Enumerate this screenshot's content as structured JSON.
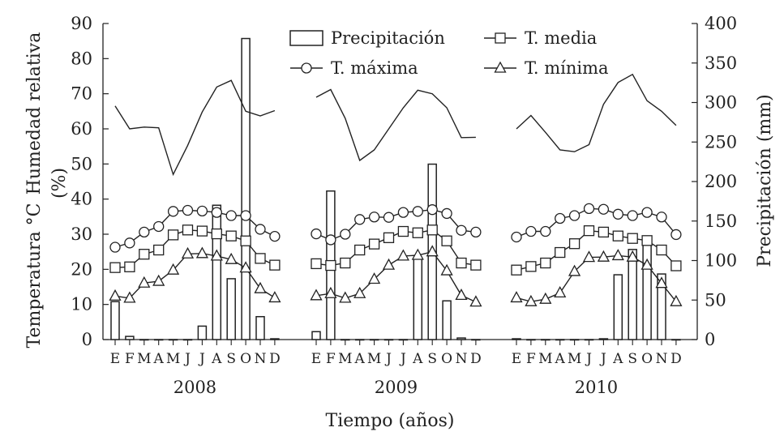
{
  "chart_data": {
    "type": "combo",
    "title": "",
    "xlabel": "Tiempo (años)",
    "ylabel_left_top": "Humedad relativa",
    "ylabel_left_top_unit": "(%)",
    "ylabel_left_bottom": "Temperatura °C",
    "ylabel_right": "Precipitación (mm)",
    "ylim_left": [
      0,
      90
    ],
    "ylim_right": [
      0,
      400
    ],
    "yticks_left": [
      0,
      10,
      20,
      30,
      40,
      50,
      60,
      70,
      80,
      90
    ],
    "yticks_right": [
      0,
      50,
      100,
      150,
      200,
      250,
      300,
      350,
      400
    ],
    "grid": false,
    "legend_position": "top",
    "years": [
      "2008",
      "2009",
      "2010"
    ],
    "months": [
      "E",
      "F",
      "M",
      "A",
      "M",
      "J",
      "J",
      "A",
      "S",
      "O",
      "N",
      "D"
    ],
    "series": [
      {
        "name": "Precipitación",
        "kind": "bar",
        "axis": "right",
        "values": [
          [
            48,
            4,
            0,
            0,
            0,
            0,
            17,
            170,
            77,
            381,
            29,
            1
          ],
          [
            10,
            188,
            0,
            0,
            0,
            0,
            0,
            104,
            222,
            49,
            2,
            0
          ],
          [
            1,
            0,
            0,
            0,
            0,
            0,
            1,
            82,
            114,
            128,
            83,
            0
          ]
        ]
      },
      {
        "name": "T. media",
        "kind": "line",
        "marker": "square",
        "axis": "left",
        "values": [
          [
            20.5,
            20.7,
            24.3,
            25.5,
            29.8,
            31.2,
            30.9,
            30.1,
            29.5,
            28.1,
            23.1,
            21.2
          ],
          [
            21.6,
            21.1,
            21.8,
            25.5,
            27.2,
            29.0,
            30.8,
            30.4,
            31.2,
            28.1,
            21.8,
            21.2
          ],
          [
            19.8,
            20.8,
            21.8,
            24.8,
            27.3,
            31.0,
            30.6,
            29.5,
            28.8,
            28.2,
            25.5,
            21.0
          ]
        ]
      },
      {
        "name": "T. máxima",
        "kind": "line",
        "marker": "circle",
        "axis": "left",
        "values": [
          [
            26.3,
            27.5,
            30.6,
            32.2,
            36.5,
            36.8,
            36.6,
            36.2,
            35.3,
            35.3,
            31.4,
            29.4
          ],
          [
            30.1,
            28.4,
            30.0,
            34.2,
            34.9,
            34.8,
            36.2,
            36.5,
            37.0,
            35.9,
            31.1,
            30.6
          ],
          [
            29.2,
            30.8,
            30.8,
            34.5,
            35.3,
            37.3,
            37.1,
            35.7,
            35.3,
            36.2,
            34.9,
            29.9
          ]
        ]
      },
      {
        "name": "T. mínima",
        "kind": "line",
        "marker": "triangle",
        "axis": "left",
        "values": [
          [
            12.4,
            11.8,
            16.1,
            16.6,
            19.8,
            24.4,
            24.5,
            23.8,
            22.8,
            20.4,
            14.5,
            11.9
          ],
          [
            12.5,
            13.1,
            11.8,
            13.1,
            17.2,
            21.2,
            23.8,
            24.0,
            25.0,
            19.6,
            12.6,
            10.7
          ],
          [
            11.9,
            10.8,
            11.5,
            13.3,
            19.4,
            23.4,
            23.5,
            23.9,
            23.5,
            21.2,
            16.0,
            10.8
          ]
        ]
      },
      {
        "name": "Humedad relativa",
        "kind": "line",
        "marker": "none",
        "axis": "left",
        "values": [
          [
            66.5,
            60.0,
            60.5,
            60.3,
            47.0,
            55.3,
            64.8,
            71.9,
            73.8,
            65.0,
            63.7,
            65.2
          ],
          [
            69.0,
            71.2,
            63.0,
            51.0,
            54.0,
            60.0,
            66.0,
            71.0,
            70.0,
            66.0,
            57.5,
            57.6
          ],
          [
            60.0,
            63.8,
            59.0,
            54.0,
            53.5,
            55.5,
            67.0,
            73.2,
            75.5,
            68.0,
            65.0,
            61.0
          ]
        ]
      }
    ]
  }
}
